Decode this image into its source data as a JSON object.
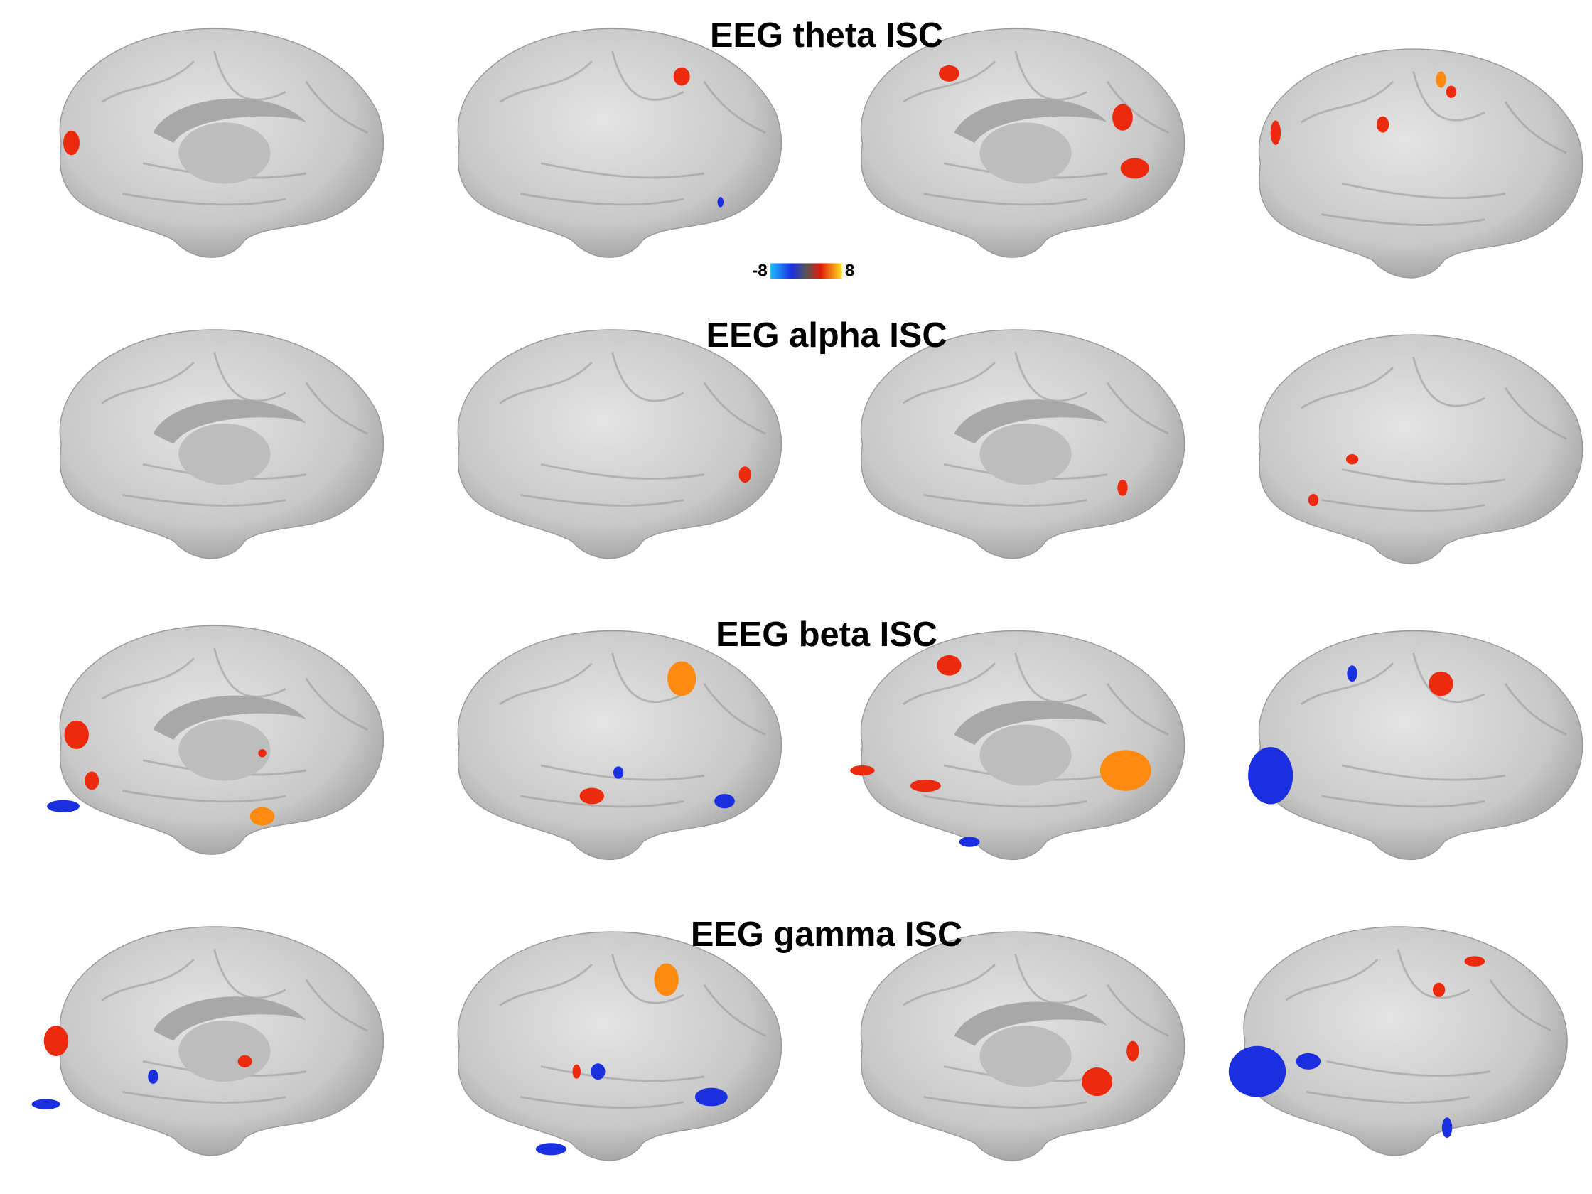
{
  "panels": [
    {
      "title": "EEG theta ISC"
    },
    {
      "title": "EEG alpha ISC"
    },
    {
      "title": "EEG beta ISC"
    },
    {
      "title": "EEG gamma ISC"
    }
  ],
  "colorbar": {
    "min": -8,
    "max": 8
  }
}
